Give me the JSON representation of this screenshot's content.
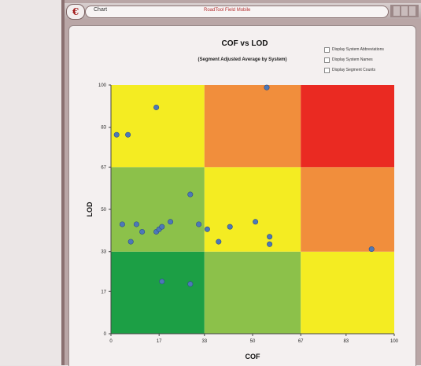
{
  "window": {
    "tab_label": "Chart",
    "title": "RoadTool Field Mobile"
  },
  "options": [
    {
      "label": "Display System Abbreviations",
      "checked": false
    },
    {
      "label": "Display System Names",
      "checked": false
    },
    {
      "label": "Display Segment Counts",
      "checked": false
    }
  ],
  "colors": {
    "green_dark": "#1c9f45",
    "green_light": "#8cc14a",
    "yellow": "#f4ec22",
    "orange": "#f18e3c",
    "red": "#ea2a22",
    "point": "#4d78b8"
  },
  "chart_data": {
    "type": "scatter",
    "title": "COF vs LOD",
    "subtitle": "(Segment Adjusted Average by System)",
    "xlabel": "COF",
    "ylabel": "LOD",
    "xlim": [
      0,
      100
    ],
    "ylim": [
      0,
      100
    ],
    "xticks": [
      0,
      17,
      33,
      50,
      67,
      83,
      100
    ],
    "yticks": [
      0,
      17,
      33,
      50,
      67,
      83,
      100
    ],
    "zones": [
      {
        "x": [
          0,
          33
        ],
        "y": [
          0,
          33
        ],
        "color": "green_dark"
      },
      {
        "x": [
          33,
          67
        ],
        "y": [
          0,
          33
        ],
        "color": "green_light"
      },
      {
        "x": [
          67,
          100
        ],
        "y": [
          0,
          33
        ],
        "color": "yellow"
      },
      {
        "x": [
          0,
          33
        ],
        "y": [
          33,
          67
        ],
        "color": "green_light"
      },
      {
        "x": [
          33,
          67
        ],
        "y": [
          33,
          67
        ],
        "color": "yellow"
      },
      {
        "x": [
          67,
          100
        ],
        "y": [
          33,
          67
        ],
        "color": "orange"
      },
      {
        "x": [
          0,
          33
        ],
        "y": [
          67,
          100
        ],
        "color": "yellow"
      },
      {
        "x": [
          33,
          67
        ],
        "y": [
          67,
          100
        ],
        "color": "orange"
      },
      {
        "x": [
          67,
          100
        ],
        "y": [
          67,
          100
        ],
        "color": "red"
      }
    ],
    "points": [
      {
        "x": 2,
        "y": 80
      },
      {
        "x": 6,
        "y": 80
      },
      {
        "x": 16,
        "y": 91
      },
      {
        "x": 4,
        "y": 44
      },
      {
        "x": 7,
        "y": 37
      },
      {
        "x": 9,
        "y": 44
      },
      {
        "x": 11,
        "y": 41
      },
      {
        "x": 16,
        "y": 41
      },
      {
        "x": 17,
        "y": 42
      },
      {
        "x": 18,
        "y": 43
      },
      {
        "x": 21,
        "y": 45
      },
      {
        "x": 28,
        "y": 56
      },
      {
        "x": 31,
        "y": 44
      },
      {
        "x": 34,
        "y": 42
      },
      {
        "x": 38,
        "y": 37
      },
      {
        "x": 42,
        "y": 43
      },
      {
        "x": 51,
        "y": 45
      },
      {
        "x": 56,
        "y": 39
      },
      {
        "x": 56,
        "y": 36
      },
      {
        "x": 55,
        "y": 99
      },
      {
        "x": 92,
        "y": 34
      },
      {
        "x": 18,
        "y": 21
      },
      {
        "x": 28,
        "y": 20
      }
    ]
  }
}
